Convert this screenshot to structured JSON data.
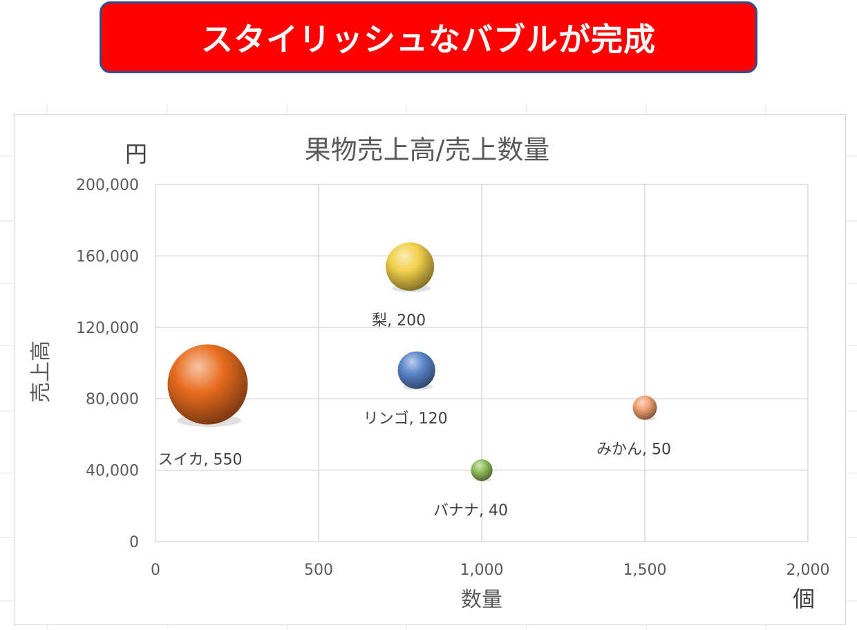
{
  "banner": {
    "title": "スタイリッシュなバブルが完成"
  },
  "chart_data": {
    "type": "bubble",
    "title": "果物売上高/売上数量",
    "xlabel": "数量",
    "ylabel": "売上高",
    "x_unit": "個",
    "y_unit": "円",
    "xlim": [
      0,
      2000
    ],
    "ylim": [
      0,
      200000
    ],
    "x_ticks": [
      0,
      500,
      1000,
      1500,
      2000
    ],
    "y_ticks": [
      0,
      40000,
      80000,
      120000,
      160000,
      200000
    ],
    "x_tick_labels": [
      "0",
      "500",
      "1,000",
      "1,500",
      "2,000"
    ],
    "y_tick_labels": [
      "0",
      "40,000",
      "80,000",
      "120,000",
      "160,000",
      "200,000"
    ],
    "grid": true,
    "points": [
      {
        "name": "スイカ",
        "x": 160,
        "y": 88000,
        "size": 550,
        "label": "スイカ, 550",
        "color": "#e86c1f",
        "label_pos": "bottom-left"
      },
      {
        "name": "梨",
        "x": 780,
        "y": 154000,
        "size": 200,
        "label": "梨, 200",
        "color": "#f2cf4a",
        "label_pos": "below"
      },
      {
        "name": "リンゴ",
        "x": 800,
        "y": 96000,
        "size": 120,
        "label": "リンゴ, 120",
        "color": "#5b86cc",
        "label_pos": "below"
      },
      {
        "name": "バナナ",
        "x": 1000,
        "y": 40000,
        "size": 40,
        "label": "バナナ, 40",
        "color": "#8fbf5a",
        "label_pos": "below"
      },
      {
        "name": "みかん",
        "x": 1500,
        "y": 75000,
        "size": 50,
        "label": "みかん, 50",
        "color": "#f0a070",
        "label_pos": "below"
      }
    ]
  }
}
